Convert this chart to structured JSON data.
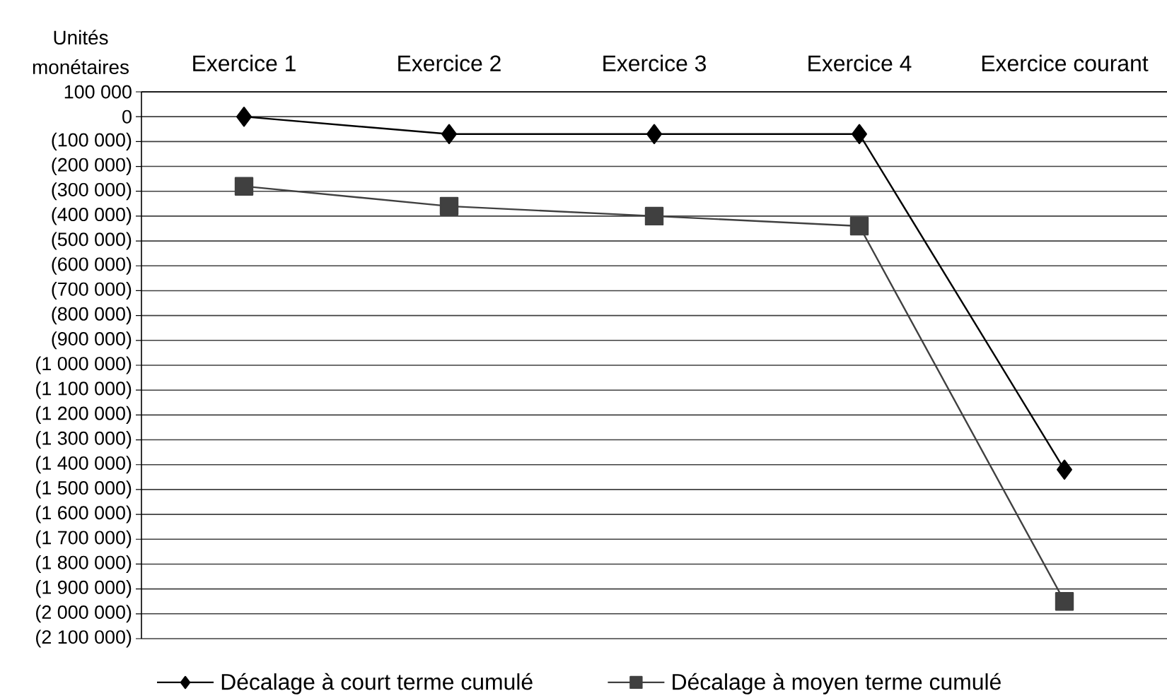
{
  "chart_data": {
    "type": "line",
    "ylabel": "Unités monétaires",
    "categories": [
      "Exercice 1",
      "Exercice 2",
      "Exercice 3",
      "Exercice 4",
      "Exercice courant"
    ],
    "series": [
      {
        "name": "Décalage à court terme cumulé",
        "color": "#000000",
        "marker": "diamond",
        "values": [
          0,
          -70000,
          -70000,
          -70000,
          -1420000
        ]
      },
      {
        "name": "Décalage à moyen terme cumulé",
        "color": "#404040",
        "marker": "square",
        "values": [
          -280000,
          -360000,
          -400000,
          -440000,
          -1950000
        ]
      }
    ],
    "ylim": [
      -2100000,
      100000
    ],
    "yticks": [
      {
        "value": 100000,
        "label": "100 000"
      },
      0,
      {
        "value": -100000,
        "label": "(100 000)"
      },
      {
        "value": -200000,
        "label": "(200 000)"
      },
      {
        "value": -300000,
        "label": "(300 000)"
      },
      {
        "value": -400000,
        "label": "(400 000)"
      },
      {
        "value": -500000,
        "label": "(500 000)"
      },
      {
        "value": -600000,
        "label": "(600 000)"
      },
      {
        "value": -700000,
        "label": "(700 000)"
      },
      {
        "value": -800000,
        "label": "(800 000)"
      },
      {
        "value": -900000,
        "label": "(900 000)"
      },
      {
        "value": -1000000,
        "label": "(1 000 000)"
      },
      {
        "value": -1100000,
        "label": "(1 100 000)"
      },
      {
        "value": -1200000,
        "label": "(1 200 000)"
      },
      {
        "value": -1300000,
        "label": "(1 300 000)"
      },
      {
        "value": -1400000,
        "label": "(1 400 000)"
      },
      {
        "value": -1500000,
        "label": "(1 500 000)"
      },
      {
        "value": -1600000,
        "label": "(1 600 000)"
      },
      {
        "value": -1700000,
        "label": "(1 700 000)"
      },
      {
        "value": -1800000,
        "label": "(1 800 000)"
      },
      {
        "value": -1900000,
        "label": "(1 900 000)"
      },
      {
        "value": -2000000,
        "label": "(2 000 000)"
      },
      {
        "value": -2100000,
        "label": "(2 100 000)"
      }
    ],
    "grid": "y",
    "legend": "bottom"
  }
}
